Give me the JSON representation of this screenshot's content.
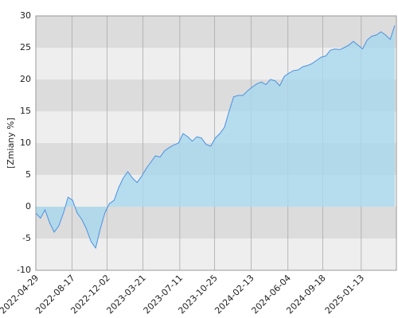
{
  "chart_data": {
    "type": "area",
    "y_label": "[Zmiany %]",
    "x": [
      "2022-04-29",
      "2022-05-13",
      "2022-05-27",
      "2022-06-10",
      "2022-06-24",
      "2022-07-08",
      "2022-07-22",
      "2022-08-05",
      "2022-08-19",
      "2022-09-02",
      "2022-09-16",
      "2022-09-30",
      "2022-10-14",
      "2022-10-28",
      "2022-11-11",
      "2022-11-25",
      "2022-12-09",
      "2022-12-23",
      "2023-01-06",
      "2023-01-20",
      "2023-02-03",
      "2023-02-17",
      "2023-03-03",
      "2023-03-17",
      "2023-03-31",
      "2023-04-14",
      "2023-04-28",
      "2023-05-12",
      "2023-05-26",
      "2023-06-09",
      "2023-06-23",
      "2023-07-07",
      "2023-07-21",
      "2023-08-04",
      "2023-08-18",
      "2023-09-01",
      "2023-09-15",
      "2023-09-29",
      "2023-10-13",
      "2023-10-27",
      "2023-11-10",
      "2023-11-24",
      "2023-12-08",
      "2023-12-22",
      "2024-01-05",
      "2024-01-19",
      "2024-02-02",
      "2024-02-16",
      "2024-03-01",
      "2024-03-15",
      "2024-03-29",
      "2024-04-12",
      "2024-04-26",
      "2024-05-10",
      "2024-05-24",
      "2024-06-07",
      "2024-06-21",
      "2024-07-05",
      "2024-07-19",
      "2024-08-02",
      "2024-08-16",
      "2024-08-30",
      "2024-09-13",
      "2024-09-27",
      "2024-10-11",
      "2024-10-25",
      "2024-11-08",
      "2024-11-22",
      "2024-12-06",
      "2024-12-20",
      "2025-01-03",
      "2025-01-17",
      "2025-01-31",
      "2025-02-14",
      "2025-02-28",
      "2025-03-14",
      "2025-03-28",
      "2025-04-11",
      "2025-04-25"
    ],
    "series": [
      {
        "color": "#4a90e2",
        "fill": "#a8d8ee",
        "values": [
          -1,
          -1.8,
          -0.5,
          -2.5,
          -4,
          -3,
          -1,
          1.5,
          1,
          -1,
          -2,
          -3.5,
          -5.5,
          -6.5,
          -3.5,
          -1,
          0.5,
          1,
          3,
          4.5,
          5.5,
          4.5,
          3.8,
          4.8,
          6,
          7,
          8,
          7.8,
          8.8,
          9.3,
          9.7,
          10,
          11.5,
          11,
          10.3,
          11,
          10.8,
          9.8,
          9.5,
          10.8,
          11.5,
          12.5,
          15,
          17.3,
          17.5,
          17.5,
          18.2,
          18.8,
          19.3,
          19.6,
          19.2,
          20,
          19.8,
          19,
          20.5,
          21,
          21.4,
          21.5,
          22,
          22.2,
          22.5,
          23,
          23.5,
          23.7,
          24.6,
          24.8,
          24.7,
          25,
          25.4,
          26,
          25.4,
          24.8,
          26.2,
          26.8,
          27,
          27.5,
          27,
          26.3,
          28.5
        ]
      }
    ],
    "xlim": [
      "2022-04-29",
      "2025-04-30"
    ],
    "xticks": [
      "2022-04-29",
      "2022-08-17",
      "2022-12-02",
      "2023-03-21",
      "2023-07-11",
      "2023-10-25",
      "2024-02-13",
      "2024-06-04",
      "2024-09-18",
      "2025-01-13"
    ],
    "ylim": [
      -10,
      30
    ],
    "yticks": [
      -10,
      -5,
      0,
      5,
      10,
      15,
      20,
      25,
      30
    ],
    "grid": true
  }
}
